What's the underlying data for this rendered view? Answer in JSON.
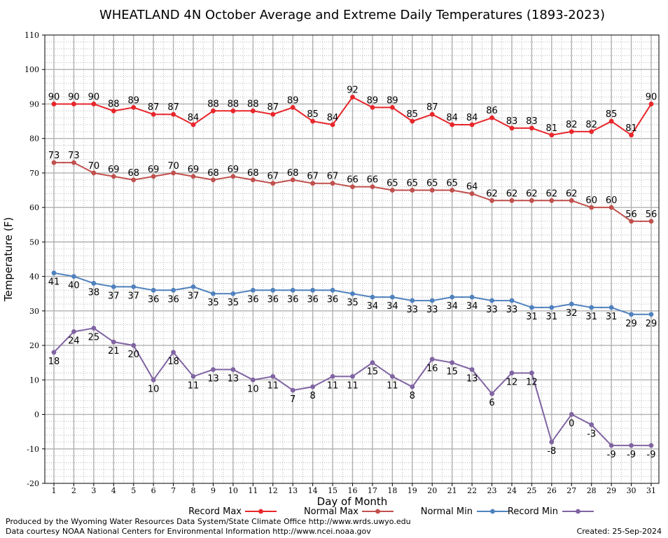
{
  "chart_data": {
    "type": "line",
    "title": "WHEATLAND 4N October Average and Extreme Daily Temperatures (1893-2023)",
    "xlabel": "Day of Month",
    "ylabel": "Temperature (F)",
    "ylim": [
      -20,
      110
    ],
    "yticks": [
      -20,
      -10,
      0,
      10,
      20,
      30,
      40,
      50,
      60,
      70,
      80,
      90,
      100,
      110
    ],
    "x": [
      1,
      2,
      3,
      4,
      5,
      6,
      7,
      8,
      9,
      10,
      11,
      12,
      13,
      14,
      15,
      16,
      17,
      18,
      19,
      20,
      21,
      22,
      23,
      24,
      25,
      26,
      27,
      28,
      29,
      30,
      31
    ],
    "grid": true,
    "legend_position": "bottom",
    "series": [
      {
        "name": "Record Max",
        "color": "#e8262b",
        "label_position": "above",
        "values": [
          90,
          90,
          90,
          88,
          89,
          87,
          87,
          84,
          88,
          88,
          88,
          87,
          89,
          85,
          84,
          92,
          89,
          89,
          85,
          87,
          84,
          84,
          86,
          83,
          83,
          81,
          82,
          82,
          85,
          81,
          90
        ]
      },
      {
        "name": "Normal Max",
        "color": "#c0504d",
        "label_position": "above",
        "values": [
          73,
          73,
          70,
          69,
          68,
          69,
          70,
          69,
          68,
          69,
          68,
          67,
          68,
          67,
          67,
          66,
          66,
          65,
          65,
          65,
          65,
          64,
          62,
          62,
          62,
          62,
          62,
          60,
          60,
          56,
          56
        ]
      },
      {
        "name": "Normal Min",
        "color": "#4f81bd",
        "label_position": "below",
        "values": [
          41,
          40,
          38,
          37,
          37,
          36,
          36,
          37,
          35,
          35,
          36,
          36,
          36,
          36,
          36,
          35,
          34,
          34,
          33,
          33,
          34,
          34,
          33,
          33,
          31,
          31,
          32,
          31,
          31,
          29,
          29
        ]
      },
      {
        "name": "Record Min",
        "color": "#8064a2",
        "label_position": "below",
        "values": [
          18,
          24,
          25,
          21,
          20,
          10,
          18,
          11,
          13,
          13,
          10,
          11,
          7,
          8,
          11,
          11,
          15,
          11,
          8,
          16,
          15,
          13,
          6,
          12,
          12,
          -8,
          0,
          -3,
          -9,
          -9,
          -9
        ]
      }
    ]
  },
  "footer": {
    "produced_by": "Produced by the Wyoming Water Resources Data System/State Climate Office http://www.wrds.uwyo.edu",
    "courtesy": "Data courtesy NOAA National Centers for Environmental Information http://www.ncei.noaa.gov",
    "created": "Created:  25-Sep-2024"
  }
}
